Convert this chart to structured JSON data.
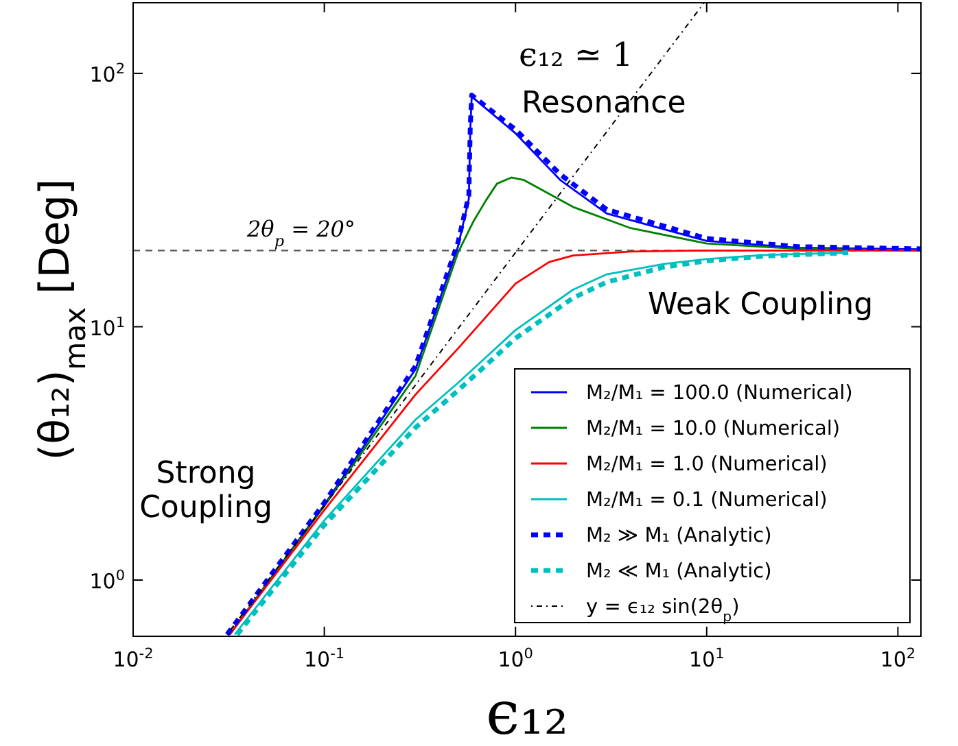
{
  "chart_data": {
    "type": "line",
    "xlabel": "ϵ₁₂",
    "ylabel": "(θ₁₂)$_{max}$ [Deg]",
    "log": "xy",
    "grid": false,
    "legend": "bottom right",
    "xlim": [
      0.01,
      132
    ],
    "ylim": [
      0.6,
      190
    ],
    "xticks": [
      {
        "value": 0.01,
        "label": "10$^{-2}$"
      },
      {
        "value": 0.1,
        "label": "10$^{-1}$"
      },
      {
        "value": 1,
        "label": "10$^{0}$"
      },
      {
        "value": 10,
        "label": "10$^{1}$"
      },
      {
        "value": 100,
        "label": "10$^{2}$"
      }
    ],
    "yticks": [
      {
        "value": 1,
        "label": "10$^{0}$"
      },
      {
        "value": 10,
        "label": "10$^{1}$"
      },
      {
        "value": 100,
        "label": "10$^{2}$"
      }
    ],
    "ref_lines": [
      {
        "axis": "y",
        "value": 20,
        "label": "2θ$_{p}$ = 20°",
        "color": "#555555",
        "line_style": "dashed"
      }
    ],
    "annotations": [
      "ϵ₁₂ ≃ 1",
      "Resonance",
      "Strong\nCoupling",
      "Weak Coupling"
    ],
    "series": [
      {
        "name": "M₂/M₁ = 100.0 (Numerical)",
        "color": "#0000ff",
        "line_style": "solid",
        "x": [
          0.032,
          0.1,
          0.3,
          0.5,
          0.57,
          0.58,
          0.59,
          1,
          1.71,
          3,
          10,
          30,
          132
        ],
        "values": [
          0.61,
          1.98,
          6.8,
          20.7,
          32,
          60,
          81,
          58,
          38,
          28,
          21.8,
          20.5,
          20.2
        ]
      },
      {
        "name": "M₂/M₁ = 10.0 (Numerical)",
        "color": "#008000",
        "line_style": "solid",
        "x": [
          0.032,
          0.1,
          0.3,
          0.5,
          0.6,
          0.7,
          0.8,
          0.95,
          1.1,
          2,
          4,
          10,
          30,
          132
        ],
        "values": [
          0.61,
          1.96,
          6.4,
          19.6,
          25.9,
          31.5,
          36.7,
          38.8,
          38,
          29.7,
          24.5,
          21.3,
          20.3,
          20
        ]
      },
      {
        "name": "M₂/M₁ = 1.0 (Numerical)",
        "color": "#ff0000",
        "line_style": "solid",
        "x": [
          0.032,
          0.1,
          0.3,
          0.5,
          1,
          1.5,
          2,
          4,
          10,
          132
        ],
        "values": [
          0.61,
          1.89,
          5.4,
          8.2,
          14.8,
          18,
          19.1,
          19.8,
          20,
          20
        ]
      },
      {
        "name": "M₂/M₁ = 0.1 (Numerical)",
        "color": "#00bfbf",
        "line_style": "solid",
        "x": [
          0.034,
          0.1,
          0.3,
          0.5,
          1,
          2,
          3,
          6,
          10,
          20,
          55
        ],
        "values": [
          0.61,
          1.72,
          4.3,
          6,
          9.7,
          14,
          16.1,
          17.7,
          18.5,
          19.2,
          19.6
        ]
      },
      {
        "name": "M₂ ≫ M₁ (Analytic)",
        "color": "#0000ff",
        "line_style": "dashed",
        "x": [
          0.031,
          0.1,
          0.3,
          0.5,
          0.57,
          0.58,
          0.59,
          1,
          1.71,
          3,
          10,
          30,
          132
        ],
        "values": [
          0.61,
          2.02,
          7,
          21.5,
          33,
          62,
          82,
          60,
          40,
          29,
          22.3,
          20.7,
          20.3
        ]
      },
      {
        "name": "M₂ ≪ M₁ (Analytic)",
        "color": "#00bfbf",
        "line_style": "dashed",
        "x": [
          0.035,
          0.1,
          0.3,
          0.5,
          1,
          2,
          3,
          6,
          10,
          20,
          55
        ],
        "values": [
          0.61,
          1.65,
          4,
          5.6,
          9,
          13,
          15,
          17.2,
          18.2,
          19,
          19.6
        ]
      },
      {
        "name": "y = ϵ₁₂ sin(2θ$_{p}$)",
        "color": "#000000",
        "line_style": "dotted",
        "x": [
          0.031,
          9.7
        ],
        "values": [
          0.61,
          190
        ]
      }
    ]
  }
}
